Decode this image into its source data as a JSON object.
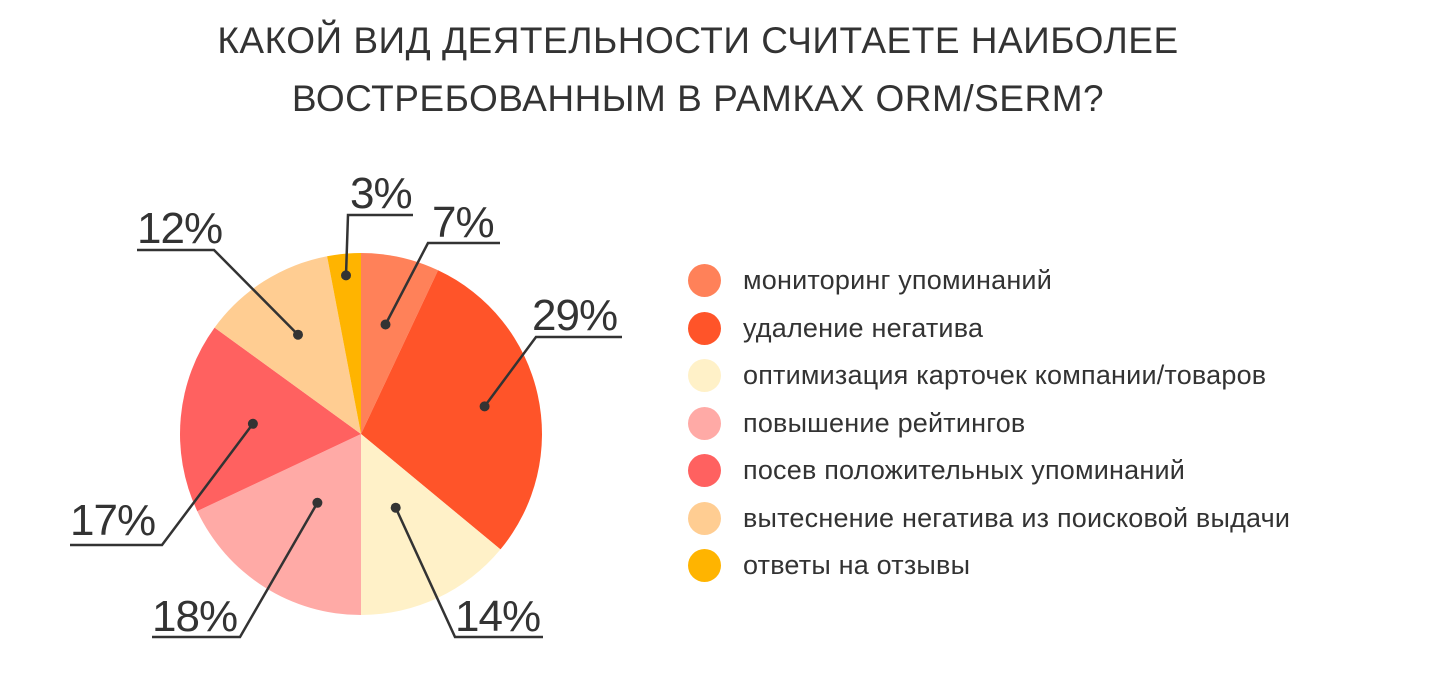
{
  "title": {
    "line1": "КАКОЙ ВИД ДЕЯТЕЛЬНОСТИ СЧИТАЕТЕ НАИБОЛЕЕ",
    "line2": "ВОСТРЕБОВАННЫМ В РАМКАХ ORM/SERM?"
  },
  "chart_data": {
    "type": "pie",
    "title": "КАКОЙ ВИД ДЕЯТЕЛЬНОСТИ СЧИТАЕТЕ НАИБОЛЕЕ ВОСТРЕБОВАННЫМ В РАМКАХ ORM/SERM?",
    "categories": [
      "мониторинг упоминаний",
      "удаление негатива",
      "оптимизация карточек компании/товаров",
      "повышение рейтингов",
      "посев положительных упоминаний",
      "вытеснение негатива из поисковой выдачи",
      "ответы на отзывы"
    ],
    "values": [
      7,
      29,
      14,
      18,
      17,
      12,
      3
    ],
    "labels": [
      "7%",
      "29%",
      "14%",
      "18%",
      "17%",
      "12%",
      "3%"
    ],
    "colors": [
      "#FF8159",
      "#FF5429",
      "#FFF1C8",
      "#FFAAA6",
      "#FF6160",
      "#FFCD92",
      "#FFB400"
    ],
    "legend_position": "right"
  }
}
